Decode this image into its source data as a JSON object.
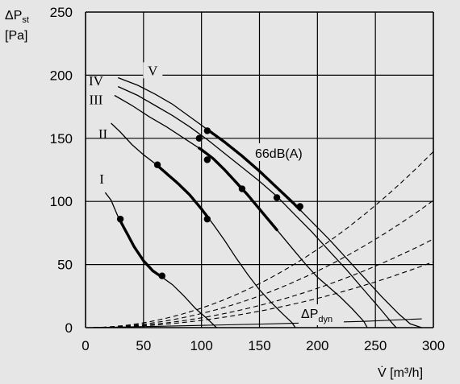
{
  "chart_data": {
    "type": "line",
    "background": "#e6e6e6",
    "ylabel_lines": [
      "ΔP",
      "st",
      "[Pa]"
    ],
    "xlabel": "V̇ [m³/h]",
    "xlim": [
      0,
      300
    ],
    "ylim": [
      0,
      250
    ],
    "x_ticks": [
      0,
      50,
      100,
      150,
      200,
      250,
      300
    ],
    "y_ticks": [
      0,
      50,
      100,
      150,
      200,
      250
    ],
    "grid": true,
    "annotation_noise": "66dB(A)",
    "annotation_dyn": {
      "main": "ΔP",
      "sub": "dyn"
    },
    "series": [
      {
        "name": "I",
        "points": [
          [
            17,
            107
          ],
          [
            22,
            101
          ],
          [
            28,
            88
          ],
          [
            35,
            76
          ],
          [
            42,
            64
          ],
          [
            50,
            53
          ],
          [
            58,
            45
          ],
          [
            66,
            40
          ],
          [
            75,
            34
          ],
          [
            85,
            25
          ],
          [
            95,
            15
          ],
          [
            105,
            7
          ],
          [
            113,
            0
          ]
        ],
        "operating_points": [
          [
            30,
            86
          ],
          [
            66,
            41
          ]
        ],
        "label_xy": [
          14,
          114
        ]
      },
      {
        "name": "II",
        "points": [
          [
            22,
            162
          ],
          [
            30,
            155
          ],
          [
            40,
            145
          ],
          [
            50,
            137
          ],
          [
            60,
            130
          ],
          [
            70,
            122
          ],
          [
            80,
            114
          ],
          [
            90,
            105
          ],
          [
            100,
            94
          ],
          [
            110,
            82
          ],
          [
            120,
            69
          ],
          [
            130,
            55
          ],
          [
            140,
            42
          ],
          [
            150,
            30
          ],
          [
            160,
            20
          ],
          [
            170,
            11
          ],
          [
            178,
            4
          ],
          [
            181,
            0
          ]
        ],
        "operating_points": [
          [
            62,
            129
          ],
          [
            105,
            86
          ]
        ],
        "label_xy": [
          15,
          150
        ]
      },
      {
        "name": "III",
        "points": [
          [
            25,
            184
          ],
          [
            40,
            176
          ],
          [
            55,
            167
          ],
          [
            70,
            159
          ],
          [
            85,
            150
          ],
          [
            100,
            141
          ],
          [
            110,
            134
          ],
          [
            120,
            125
          ],
          [
            130,
            115
          ],
          [
            140,
            105
          ],
          [
            150,
            94
          ],
          [
            160,
            83
          ],
          [
            170,
            72
          ],
          [
            180,
            61
          ],
          [
            190,
            50
          ],
          [
            200,
            40
          ],
          [
            210,
            32
          ],
          [
            220,
            24
          ],
          [
            230,
            15
          ],
          [
            240,
            5
          ],
          [
            243,
            0
          ]
        ],
        "operating_points": [
          [
            98,
            150
          ],
          [
            105,
            133
          ],
          [
            135,
            110
          ],
          [
            165,
            103
          ]
        ],
        "label_xy": [
          9,
          177
        ]
      },
      {
        "name": "IV",
        "points": [
          [
            28,
            191
          ],
          [
            45,
            184
          ],
          [
            60,
            176
          ],
          [
            75,
            168
          ],
          [
            90,
            159
          ],
          [
            105,
            149
          ],
          [
            120,
            138
          ],
          [
            135,
            127
          ],
          [
            150,
            116
          ],
          [
            165,
            104
          ],
          [
            180,
            90
          ],
          [
            195,
            76
          ],
          [
            210,
            61
          ],
          [
            225,
            46
          ],
          [
            240,
            30
          ],
          [
            255,
            14
          ],
          [
            265,
            3
          ],
          [
            268,
            0
          ]
        ],
        "operating_points": [],
        "label_xy": [
          9,
          192
        ]
      },
      {
        "name": "V",
        "points": [
          [
            28,
            198
          ],
          [
            45,
            192
          ],
          [
            60,
            185
          ],
          [
            75,
            177
          ],
          [
            90,
            167
          ],
          [
            105,
            157
          ],
          [
            120,
            147
          ],
          [
            135,
            136
          ],
          [
            150,
            124
          ],
          [
            165,
            111
          ],
          [
            180,
            98
          ],
          [
            195,
            84
          ],
          [
            210,
            70
          ],
          [
            225,
            55
          ],
          [
            240,
            40
          ],
          [
            255,
            25
          ],
          [
            270,
            11
          ],
          [
            280,
            3
          ],
          [
            290,
            0
          ]
        ],
        "operating_points": [
          [
            105,
            156
          ],
          [
            185,
            96
          ]
        ],
        "label_xy": [
          58,
          200
        ]
      }
    ],
    "bold_segments": [
      {
        "series": "I",
        "from": 30,
        "to": 66
      },
      {
        "series": "II",
        "from": 62,
        "to": 105
      },
      {
        "series": "III",
        "from": 98,
        "to": 165
      },
      {
        "series": "V",
        "from": 105,
        "to": 185
      }
    ],
    "system_curves": [
      {
        "k": 0.00155
      },
      {
        "k": 0.00112
      },
      {
        "k": 0.00078
      },
      {
        "k": 0.00058
      }
    ],
    "dynamic_pressure_curve": {
      "points": [
        [
          0,
          0
        ],
        [
          60,
          1
        ],
        [
          110,
          2
        ],
        [
          160,
          3
        ],
        [
          200,
          4
        ],
        [
          240,
          5
        ],
        [
          290,
          7
        ]
      ]
    }
  }
}
